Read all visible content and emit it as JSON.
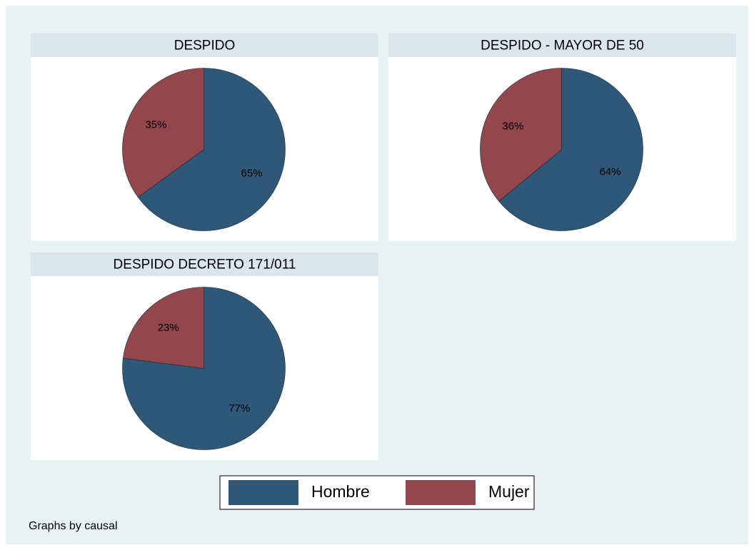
{
  "chart_data": [
    {
      "type": "pie",
      "title": "DESPIDO",
      "categories": [
        "Hombre",
        "Mujer"
      ],
      "values": [
        65,
        35
      ],
      "value_labels": [
        "65%",
        "35%"
      ],
      "colors": [
        "#2f5778",
        "#93464b"
      ]
    },
    {
      "type": "pie",
      "title": "DESPIDO - MAYOR DE 50",
      "categories": [
        "Hombre",
        "Mujer"
      ],
      "values": [
        64,
        36
      ],
      "value_labels": [
        "64%",
        "36%"
      ],
      "colors": [
        "#2f5778",
        "#93464b"
      ]
    },
    {
      "type": "pie",
      "title": "DESPIDO DECRETO 171/011",
      "categories": [
        "Hombre",
        "Mujer"
      ],
      "values": [
        77,
        23
      ],
      "value_labels": [
        "77%",
        "23%"
      ],
      "colors": [
        "#2f5778",
        "#93464b"
      ]
    }
  ],
  "note": "Graphs by causal"
}
